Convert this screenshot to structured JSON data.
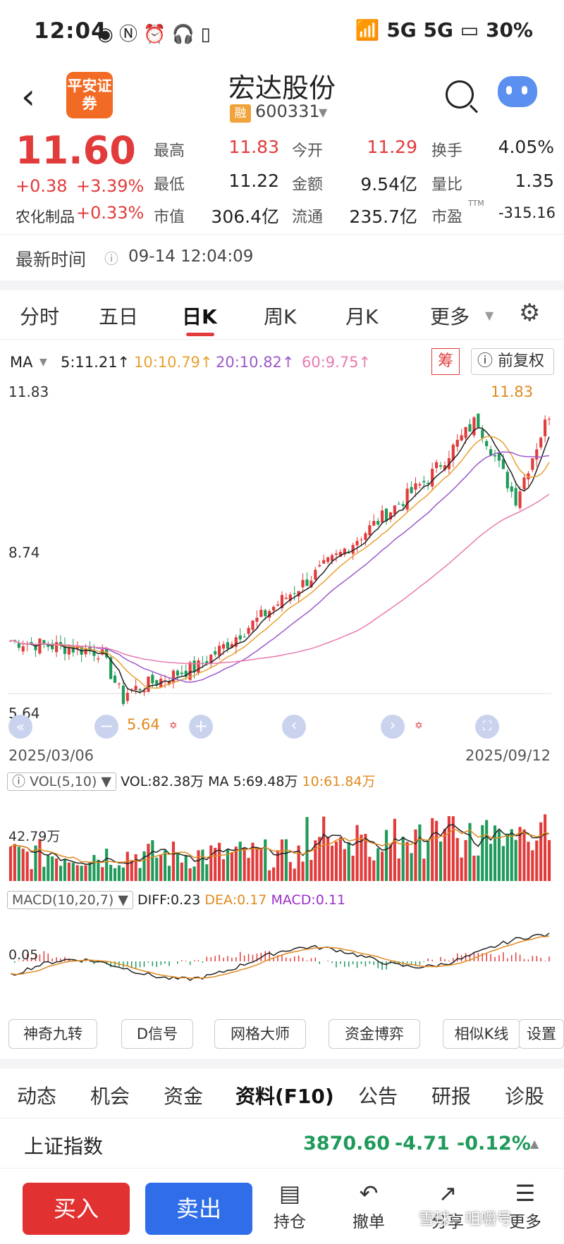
{
  "status_bar": {
    "time": "12:04",
    "icons_left": "◉ Ⓝ ⏰ 🎧 ▯",
    "icons_right": "📶 5G 5G",
    "battery": "30%"
  },
  "header": {
    "logo_text": "平安证券",
    "title": "宏达股份",
    "margin_badge": "融",
    "code": "600331"
  },
  "quote": {
    "price": "11.60",
    "change": "+0.38",
    "change_pct": "+3.39%",
    "sector_label": "农化制品",
    "sector_change": "+0.33%",
    "fields": [
      {
        "label": "最高",
        "value": "11.83",
        "color": "red"
      },
      {
        "label": "今开",
        "value": "11.29",
        "color": "red"
      },
      {
        "label": "换手",
        "value": "4.05%",
        "color": "dark"
      },
      {
        "label": "最低",
        "value": "11.22",
        "color": "dark"
      },
      {
        "label": "金额",
        "value": "9.54亿",
        "color": "dark"
      },
      {
        "label": "量比",
        "value": "1.35",
        "color": "dark"
      },
      {
        "label": "市值",
        "value": "306.4亿",
        "color": "dark"
      },
      {
        "label": "流通",
        "value": "235.7亿",
        "color": "dark"
      },
      {
        "label": "市盈",
        "value": "-315.16",
        "color": "dark"
      }
    ],
    "pe_sup": "TTM",
    "latest_label": "最新时间",
    "latest_time": "09-14 12:04:09"
  },
  "tabs": [
    "分时",
    "五日",
    "日K",
    "周K",
    "月K",
    "更多"
  ],
  "active_tab": "日K",
  "ma_legend": {
    "label": "MA",
    "ma5": "5:11.21↑",
    "ma10": "10:10.79↑",
    "ma20": "20:10.82↑",
    "ma60": "60:9.75↑",
    "chou": "筹",
    "fuquan": "前复权"
  },
  "colors": {
    "up": "#e23b3b",
    "down": "#1f9a5a",
    "ma5": "#222222",
    "ma10": "#e8a030",
    "ma20": "#9b59c9",
    "ma60": "#e87ab0",
    "orange": "#e08a1e"
  },
  "kline_axis": {
    "high": "11.83",
    "mid": "8.74",
    "low": "5.64",
    "start_date": "2025/03/06",
    "end_date": "2025/09/12",
    "max_marker": "11.83",
    "min_marker": "5.64"
  },
  "vol_legend": {
    "label": "VOL(5,10)",
    "vol": "VOL:82.38万",
    "ma5": "MA 5:69.48万",
    "ma10": "10:61.84万",
    "axis": "42.79万"
  },
  "macd_legend": {
    "label": "MACD(10,20,7)",
    "diff": "DIFF:0.23",
    "dea": "DEA:0.17",
    "macd": "MACD:0.11",
    "axis": "0.05"
  },
  "tools": [
    "神奇九转",
    "D信号",
    "网格大师",
    "资金博弈",
    "相似K线",
    "设置"
  ],
  "info_tabs": [
    "动态",
    "机会",
    "资金",
    "资料(F10)",
    "公告",
    "研报",
    "诊股"
  ],
  "active_info_tab": "资料(F10)",
  "index": {
    "name": "上证指数",
    "value": "3870.60",
    "change": "-4.71",
    "change_pct": "-0.12%"
  },
  "bottom": {
    "buy": "买入",
    "sell": "卖出",
    "items": [
      "持仓",
      "撤单",
      "分享",
      "更多"
    ]
  },
  "watermark": "雪球：咀嚼号"
}
